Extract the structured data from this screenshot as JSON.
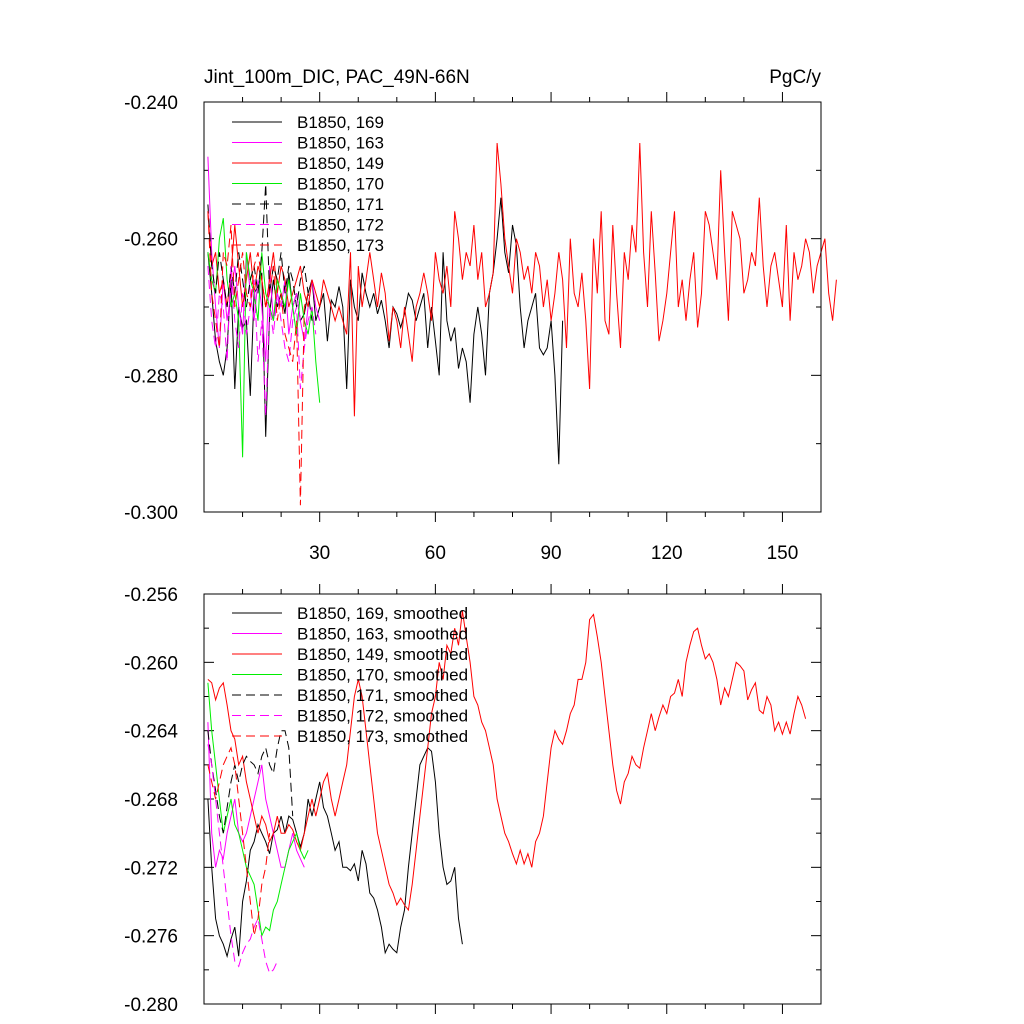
{
  "chart_data": [
    {
      "type": "line",
      "title": "Jint_100m_DIC, PAC_49N-66N",
      "units": "PgC/y",
      "xlim": [
        0,
        160
      ],
      "ylim": [
        -0.3,
        -0.24
      ],
      "xticks": [
        30,
        60,
        90,
        120,
        150
      ],
      "yticks": [
        -0.3,
        -0.28,
        -0.26,
        -0.24
      ],
      "ytick_labels": [
        "-0.300",
        "-0.280",
        "-0.260",
        "-0.240"
      ],
      "legend_position": "top-left",
      "series": [
        {
          "name": "B1850, 169",
          "color": "#000000",
          "dash": "solid",
          "values": [
            -0.262,
            -0.268,
            -0.275,
            -0.278,
            -0.28,
            -0.276,
            -0.266,
            -0.282,
            -0.27,
            -0.273,
            -0.272,
            -0.283,
            -0.268,
            -0.267,
            -0.265,
            -0.289,
            -0.271,
            -0.266,
            -0.27,
            -0.268,
            -0.271,
            -0.265,
            -0.27,
            -0.268,
            -0.272,
            -0.271,
            -0.268,
            -0.266,
            -0.272,
            -0.27,
            -0.268,
            -0.275,
            -0.269,
            -0.27,
            -0.267,
            -0.27,
            -0.282,
            -0.266,
            -0.27,
            -0.272,
            -0.265,
            -0.268,
            -0.27,
            -0.268,
            -0.271,
            -0.269,
            -0.272,
            -0.276,
            -0.27,
            -0.271,
            -0.273,
            -0.271,
            -0.268,
            -0.269,
            -0.272,
            -0.27,
            -0.268,
            -0.276,
            -0.27,
            -0.275,
            -0.28,
            -0.262,
            -0.272,
            -0.275,
            -0.273,
            -0.279,
            -0.276,
            -0.278,
            -0.284,
            -0.274,
            -0.27,
            -0.274,
            -0.28,
            -0.268,
            -0.265,
            -0.26,
            -0.254,
            -0.262,
            -0.265,
            -0.258,
            -0.261,
            -0.27,
            -0.276,
            -0.272,
            -0.27,
            -0.268,
            -0.276,
            -0.277,
            -0.276,
            -0.272,
            -0.28,
            -0.293,
            -0.272
          ]
        },
        {
          "name": "B1850, 163",
          "color": "#ff00ff",
          "dash": "solid",
          "values": [
            -0.248,
            -0.262,
            -0.27,
            -0.276,
            -0.266,
            -0.272,
            -0.268,
            -0.264,
            -0.27,
            -0.274,
            -0.262,
            -0.268,
            -0.272,
            -0.266,
            -0.27,
            -0.278,
            -0.264,
            -0.272,
            -0.268,
            -0.27,
            -0.266,
            -0.274,
            -0.27,
            -0.268,
            -0.272,
            -0.275,
            -0.27,
            -0.266,
            -0.27,
            -0.272
          ]
        },
        {
          "name": "B1850, 149",
          "color": "#ff0000",
          "dash": "solid",
          "values": [
            -0.256,
            -0.264,
            -0.262,
            -0.268,
            -0.266,
            -0.27,
            -0.265,
            -0.258,
            -0.264,
            -0.27,
            -0.266,
            -0.262,
            -0.268,
            -0.264,
            -0.266,
            -0.27,
            -0.266,
            -0.262,
            -0.268,
            -0.264,
            -0.266,
            -0.27,
            -0.268,
            -0.266,
            -0.264,
            -0.268,
            -0.27,
            -0.266,
            -0.268,
            -0.27,
            -0.266,
            -0.268,
            -0.27,
            -0.272,
            -0.27,
            -0.272,
            -0.274,
            -0.262,
            -0.286,
            -0.264,
            -0.27,
            -0.266,
            -0.262,
            -0.266,
            -0.27,
            -0.265,
            -0.268,
            -0.275,
            -0.27,
            -0.272,
            -0.276,
            -0.27,
            -0.274,
            -0.278,
            -0.27,
            -0.268,
            -0.265,
            -0.268,
            -0.272,
            -0.262,
            -0.266,
            -0.268,
            -0.264,
            -0.27,
            -0.256,
            -0.26,
            -0.266,
            -0.262,
            -0.264,
            -0.258,
            -0.266,
            -0.262,
            -0.27,
            -0.268,
            -0.265,
            -0.246,
            -0.252,
            -0.26,
            -0.264,
            -0.268,
            -0.26,
            -0.262,
            -0.266,
            -0.264,
            -0.268,
            -0.262,
            -0.264,
            -0.27,
            -0.266,
            -0.272,
            -0.268,
            -0.262,
            -0.266,
            -0.276,
            -0.26,
            -0.268,
            -0.27,
            -0.265,
            -0.272,
            -0.282,
            -0.26,
            -0.268,
            -0.256,
            -0.272,
            -0.274,
            -0.258,
            -0.268,
            -0.276,
            -0.262,
            -0.266,
            -0.258,
            -0.262,
            -0.246,
            -0.262,
            -0.27,
            -0.256,
            -0.265,
            -0.275,
            -0.272,
            -0.268,
            -0.262,
            -0.256,
            -0.27,
            -0.266,
            -0.272,
            -0.266,
            -0.262,
            -0.273,
            -0.268,
            -0.256,
            -0.258,
            -0.262,
            -0.266,
            -0.25,
            -0.262,
            -0.272,
            -0.256,
            -0.258,
            -0.26,
            -0.268,
            -0.266,
            -0.262,
            -0.264,
            -0.254,
            -0.264,
            -0.27,
            -0.264,
            -0.262,
            -0.266,
            -0.27,
            -0.258,
            -0.272,
            -0.262,
            -0.266,
            -0.264,
            -0.26,
            -0.262,
            -0.268,
            -0.264,
            -0.262,
            -0.26,
            -0.268,
            -0.272,
            -0.266
          ]
        },
        {
          "name": "B1850, 170",
          "color": "#00ee00",
          "dash": "solid",
          "values": [
            -0.262,
            -0.266,
            -0.268,
            -0.26,
            -0.257,
            -0.266,
            -0.27,
            -0.268,
            -0.272,
            -0.292,
            -0.262,
            -0.266,
            -0.268,
            -0.272,
            -0.262,
            -0.268,
            -0.27,
            -0.272,
            -0.266,
            -0.268,
            -0.27,
            -0.266,
            -0.27,
            -0.274,
            -0.268,
            -0.272,
            -0.274,
            -0.27,
            -0.278,
            -0.284
          ]
        },
        {
          "name": "B1850, 171",
          "color": "#000000",
          "dash": "dashed",
          "values": [
            -0.255,
            -0.264,
            -0.268,
            -0.262,
            -0.266,
            -0.27,
            -0.264,
            -0.268,
            -0.262,
            -0.266,
            -0.27,
            -0.266,
            -0.264,
            -0.268,
            -0.262,
            -0.252,
            -0.268,
            -0.264,
            -0.266,
            -0.262,
            -0.268,
            -0.264,
            -0.266,
            -0.27,
            -0.266,
            -0.264,
            -0.268,
            -0.272
          ]
        },
        {
          "name": "B1850, 172",
          "color": "#ff00ff",
          "dash": "dashed",
          "values": [
            -0.264,
            -0.272,
            -0.276,
            -0.268,
            -0.27,
            -0.278,
            -0.264,
            -0.272,
            -0.276,
            -0.268,
            -0.274,
            -0.27,
            -0.266,
            -0.278,
            -0.272,
            -0.286,
            -0.27,
            -0.274,
            -0.268,
            -0.272,
            -0.276,
            -0.278,
            -0.272,
            -0.27,
            -0.282,
            -0.276,
            -0.272,
            -0.27,
            -0.274
          ]
        },
        {
          "name": "B1850, 173",
          "color": "#ff0000",
          "dash": "dashed",
          "values": [
            -0.256,
            -0.268,
            -0.272,
            -0.276,
            -0.262,
            -0.264,
            -0.258,
            -0.27,
            -0.266,
            -0.262,
            -0.268,
            -0.27,
            -0.264,
            -0.262,
            -0.266,
            -0.27,
            -0.268,
            -0.264,
            -0.272,
            -0.268,
            -0.274,
            -0.276,
            -0.278,
            -0.272,
            -0.299,
            -0.27,
            -0.268
          ]
        }
      ]
    },
    {
      "type": "line",
      "title": "",
      "xlim": [
        0,
        160
      ],
      "ylim": [
        -0.28,
        -0.256
      ],
      "yticks": [
        -0.28,
        -0.276,
        -0.272,
        -0.268,
        -0.264,
        -0.26,
        -0.256
      ],
      "ytick_labels": [
        "-0.280",
        "-0.276",
        "-0.272",
        "-0.268",
        "-0.264",
        "-0.260",
        "-0.256"
      ],
      "legend_position": "top-left",
      "series": [
        {
          "name": "B1850, 169, smoothed",
          "color": "#000000",
          "dash": "solid",
          "values": [
            -0.268,
            -0.272,
            -0.275,
            -0.276,
            -0.2765,
            -0.2772,
            -0.2762,
            -0.2755,
            -0.2772,
            -0.274,
            -0.2728,
            -0.271,
            -0.2705,
            -0.2695,
            -0.27,
            -0.2705,
            -0.2712,
            -0.27,
            -0.2698,
            -0.269,
            -0.27,
            -0.269,
            -0.2692,
            -0.27,
            -0.2708,
            -0.27,
            -0.268,
            -0.269,
            -0.268,
            -0.267,
            -0.2685,
            -0.269,
            -0.27,
            -0.271,
            -0.2705,
            -0.272,
            -0.272,
            -0.2722,
            -0.2718,
            -0.2728,
            -0.271,
            -0.2718,
            -0.2735,
            -0.2738,
            -0.2745,
            -0.2755,
            -0.277,
            -0.2765,
            -0.2768,
            -0.277,
            -0.2755,
            -0.2745,
            -0.272,
            -0.27,
            -0.268,
            -0.266,
            -0.2655,
            -0.265,
            -0.2652,
            -0.267,
            -0.27,
            -0.272,
            -0.273,
            -0.2728,
            -0.272,
            -0.275,
            -0.2765
          ]
        },
        {
          "name": "B1850, 163, smoothed",
          "color": "#ff00ff",
          "dash": "solid",
          "values": [
            -0.2635,
            -0.27,
            -0.272,
            -0.271,
            -0.2715,
            -0.27,
            -0.269,
            -0.268,
            -0.27,
            -0.2705,
            -0.27,
            -0.269,
            -0.268,
            -0.267,
            -0.266,
            -0.268,
            -0.269,
            -0.27,
            -0.271,
            -0.272,
            -0.272,
            -0.271,
            -0.27,
            -0.271,
            -0.2715,
            -0.272
          ]
        },
        {
          "name": "B1850, 149, smoothed",
          "color": "#ff0000",
          "dash": "solid",
          "values": [
            -0.261,
            -0.2612,
            -0.2622,
            -0.2615,
            -0.2612,
            -0.2625,
            -0.264,
            -0.2645,
            -0.266,
            -0.2655,
            -0.267,
            -0.268,
            -0.269,
            -0.27,
            -0.269,
            -0.2695,
            -0.2705,
            -0.27,
            -0.269,
            -0.27,
            -0.27,
            -0.2695,
            -0.2698,
            -0.2705,
            -0.271,
            -0.27,
            -0.269,
            -0.268,
            -0.269,
            -0.268,
            -0.267,
            -0.2665,
            -0.268,
            -0.269,
            -0.268,
            -0.267,
            -0.266,
            -0.264,
            -0.262,
            -0.261,
            -0.262,
            -0.264,
            -0.266,
            -0.268,
            -0.27,
            -0.271,
            -0.272,
            -0.273,
            -0.2735,
            -0.2742,
            -0.2738,
            -0.2742,
            -0.2745,
            -0.273,
            -0.271,
            -0.269,
            -0.267,
            -0.265,
            -0.263,
            -0.262,
            -0.26,
            -0.261,
            -0.259,
            -0.2595,
            -0.258,
            -0.259,
            -0.257,
            -0.2585,
            -0.26,
            -0.262,
            -0.2625,
            -0.2635,
            -0.264,
            -0.265,
            -0.266,
            -0.268,
            -0.269,
            -0.27,
            -0.2705,
            -0.2712,
            -0.2718,
            -0.271,
            -0.2718,
            -0.2712,
            -0.272,
            -0.2705,
            -0.27,
            -0.269,
            -0.267,
            -0.265,
            -0.264,
            -0.2645,
            -0.2648,
            -0.264,
            -0.263,
            -0.2625,
            -0.261,
            -0.261,
            -0.26,
            -0.2575,
            -0.2572,
            -0.2585,
            -0.26,
            -0.262,
            -0.264,
            -0.266,
            -0.2675,
            -0.2683,
            -0.267,
            -0.2665,
            -0.2655,
            -0.266,
            -0.2662,
            -0.265,
            -0.264,
            -0.263,
            -0.264,
            -0.2632,
            -0.2625,
            -0.263,
            -0.262,
            -0.2618,
            -0.261,
            -0.262,
            -0.26,
            -0.259,
            -0.2582,
            -0.258,
            -0.259,
            -0.2598,
            -0.2595,
            -0.26,
            -0.261,
            -0.2625,
            -0.2615,
            -0.262,
            -0.261,
            -0.26,
            -0.2602,
            -0.2605,
            -0.2622,
            -0.2616,
            -0.2612,
            -0.2628,
            -0.263,
            -0.262,
            -0.2625,
            -0.264,
            -0.2635,
            -0.2642,
            -0.2635,
            -0.2642,
            -0.263,
            -0.262,
            -0.2625,
            -0.2633
          ]
        },
        {
          "name": "B1850, 170, smoothed",
          "color": "#00ee00",
          "dash": "solid",
          "values": [
            -0.2612,
            -0.264,
            -0.266,
            -0.268,
            -0.27,
            -0.269,
            -0.268,
            -0.2695,
            -0.27,
            -0.271,
            -0.272,
            -0.2725,
            -0.273,
            -0.2745,
            -0.276,
            -0.2755,
            -0.2757,
            -0.2745,
            -0.274,
            -0.273,
            -0.272,
            -0.271,
            -0.2705,
            -0.27,
            -0.271,
            -0.2715,
            -0.271
          ]
        },
        {
          "name": "B1850, 171, smoothed",
          "color": "#000000",
          "dash": "dashed",
          "values": [
            -0.264,
            -0.266,
            -0.2675,
            -0.269,
            -0.27,
            -0.2685,
            -0.267,
            -0.266,
            -0.267,
            -0.266,
            -0.2655,
            -0.2658,
            -0.266,
            -0.2665,
            -0.2655,
            -0.265,
            -0.266,
            -0.2665,
            -0.265,
            -0.264,
            -0.264,
            -0.265,
            -0.269
          ]
        },
        {
          "name": "B1850, 172, smoothed",
          "color": "#ff00ff",
          "dash": "dashed",
          "values": [
            -0.2648,
            -0.266,
            -0.268,
            -0.27,
            -0.272,
            -0.274,
            -0.276,
            -0.2775,
            -0.2778,
            -0.277,
            -0.2765,
            -0.2762,
            -0.2755,
            -0.275,
            -0.2762,
            -0.2775,
            -0.2782,
            -0.278,
            -0.2775
          ]
        },
        {
          "name": "B1850, 173, smoothed",
          "color": "#ff0000",
          "dash": "dashed",
          "values": [
            -0.266,
            -0.267,
            -0.268,
            -0.267,
            -0.266,
            -0.2655,
            -0.265,
            -0.266,
            -0.268,
            -0.27,
            -0.272,
            -0.274,
            -0.276,
            -0.275,
            -0.273,
            -0.272,
            -0.27
          ]
        }
      ]
    }
  ]
}
